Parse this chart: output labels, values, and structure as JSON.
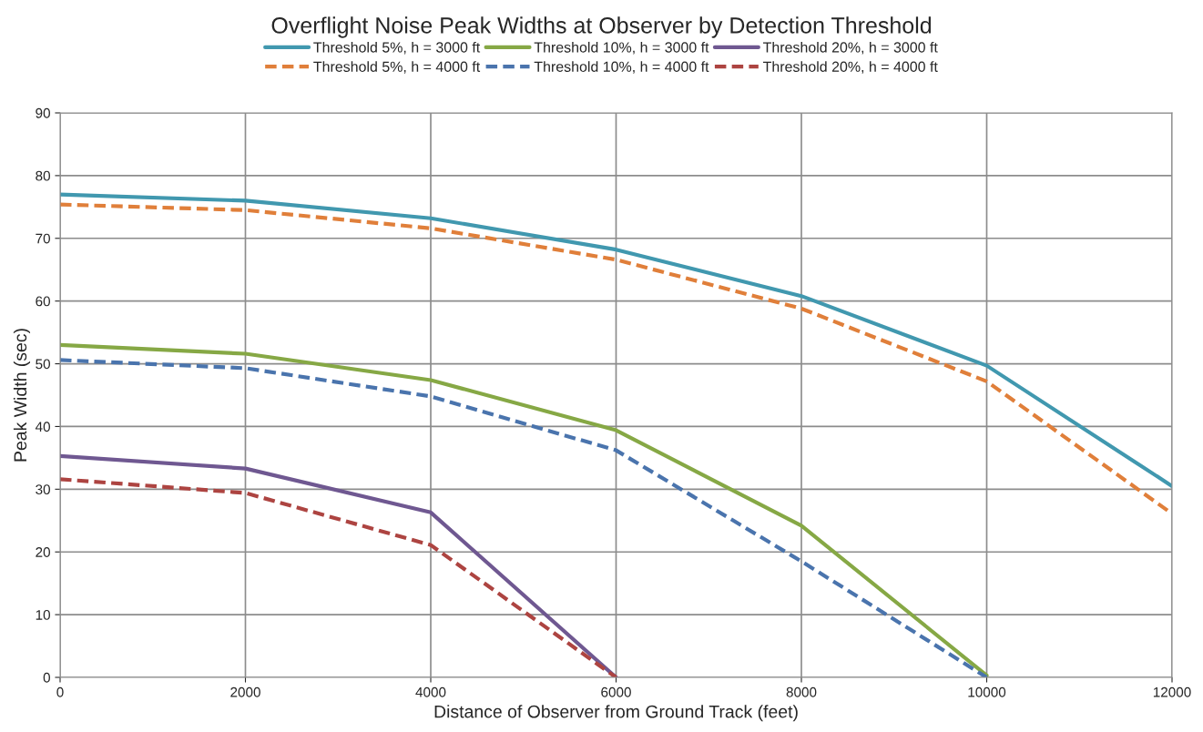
{
  "chart_data": {
    "type": "line",
    "title": "Overflight Noise Peak Widths at Observer by Detection Threshold",
    "xlabel": "Distance of Observer from Ground Track (feet)",
    "ylabel": "Peak Width (sec)",
    "xlim": [
      0,
      12000
    ],
    "xticks": [
      0,
      2000,
      4000,
      6000,
      8000,
      10000,
      12000
    ],
    "ylim": [
      0,
      90
    ],
    "yticks": [
      0,
      10,
      20,
      30,
      40,
      50,
      60,
      70,
      80,
      90
    ],
    "grid": true,
    "legend": "top",
    "marker": "none",
    "series": [
      {
        "name": "Threshold 5%, h = 3000 ft",
        "color": "#4198af",
        "line_style": "solid",
        "x": [
          0,
          2000,
          4000,
          6000,
          8000,
          10000,
          12000
        ],
        "values": [
          77,
          76,
          73.2,
          68.2,
          60.8,
          49.7,
          30.5
        ]
      },
      {
        "name": "Threshold 5%, h = 4000 ft",
        "color": "#e07f3a",
        "line_style": "dashed",
        "x": [
          0,
          2000,
          4000,
          6000,
          8000,
          10000,
          12000
        ],
        "values": [
          75.4,
          74.5,
          71.6,
          66.6,
          58.8,
          47.2,
          26.1
        ]
      },
      {
        "name": "Threshold 10%, h = 3000 ft",
        "color": "#86a845",
        "line_style": "solid",
        "x": [
          0,
          2000,
          4000,
          6000,
          8000,
          10000
        ],
        "values": [
          53,
          51.6,
          47.4,
          39.4,
          24.2,
          0.3
        ]
      },
      {
        "name": "Threshold 10%, h = 4000 ft",
        "color": "#4a74ad",
        "line_style": "dashed",
        "x": [
          0,
          2000,
          4000,
          6000,
          8000,
          10000
        ],
        "values": [
          50.6,
          49.3,
          44.8,
          36.2,
          18.5,
          0
        ]
      },
      {
        "name": "Threshold 20%, h = 3000 ft",
        "color": "#6f5891",
        "line_style": "solid",
        "x": [
          0,
          2000,
          4000,
          6000
        ],
        "values": [
          35.3,
          33.3,
          26.3,
          0
        ]
      },
      {
        "name": "Threshold 20%, h = 4000 ft",
        "color": "#ad4441",
        "line_style": "dashed",
        "x": [
          0,
          2000,
          4000,
          6000
        ],
        "values": [
          31.6,
          29.4,
          21.1,
          0
        ]
      }
    ]
  }
}
